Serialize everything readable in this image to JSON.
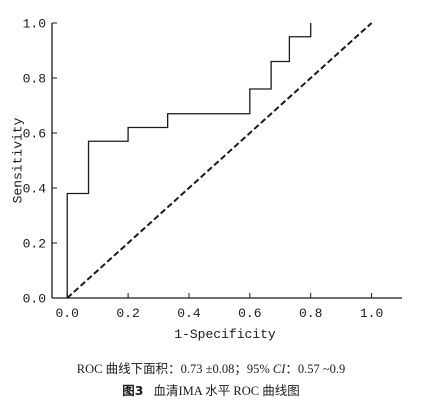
{
  "chart_data": {
    "type": "line",
    "title": "",
    "xlabel": "1-Specificity",
    "ylabel": "Sensitivity",
    "xlim": [
      -0.05,
      1.1
    ],
    "ylim": [
      0.0,
      1.0
    ],
    "x_ticks": [
      "0.0",
      "0.2",
      "0.4",
      "0.6",
      "0.8",
      "1.0"
    ],
    "x_tick_values": [
      0.0,
      0.2,
      0.4,
      0.6,
      0.8,
      1.0
    ],
    "y_ticks": [
      "0.0",
      "0.2",
      "0.4",
      "0.6",
      "0.8",
      "1.0"
    ],
    "y_tick_values": [
      0.0,
      0.2,
      0.4,
      0.6,
      0.8,
      1.0
    ],
    "grid": false,
    "series": [
      {
        "style": "step",
        "color": "#1a1a1a",
        "x": [
          0.0,
          0.0,
          0.07,
          0.07,
          0.2,
          0.2,
          0.33,
          0.33,
          0.6,
          0.6,
          0.67,
          0.67,
          0.73,
          0.73,
          0.8,
          0.8
        ],
        "y": [
          0.0,
          0.38,
          0.38,
          0.57,
          0.57,
          0.62,
          0.62,
          0.67,
          0.67,
          0.76,
          0.76,
          0.86,
          0.86,
          0.95,
          0.95,
          1.0
        ]
      },
      {
        "style": "dashed",
        "color": "#1a1a1a",
        "x": [
          0.0,
          1.0
        ],
        "y": [
          0.0,
          1.0
        ]
      }
    ]
  },
  "caption": {
    "auc_prefix": "ROC 曲线下面积：0.73 ±0.08；95% ",
    "ci_label": "CI",
    "auc_suffix": "：0.57 ~0.9",
    "figure_label": "图3",
    "figure_title": "血清IMA 水平 ROC 曲线图"
  }
}
